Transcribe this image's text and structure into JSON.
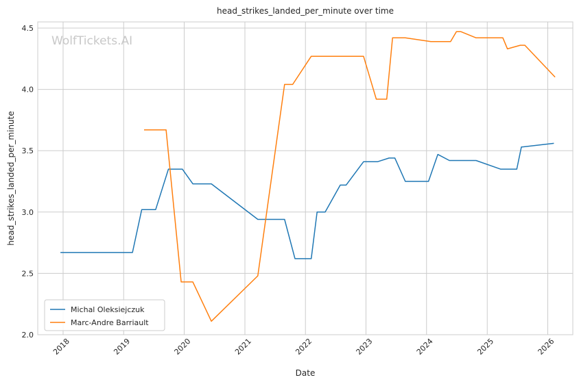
{
  "chart_data": {
    "type": "line",
    "title": "head_strikes_landed_per_minute over time",
    "xlabel": "Date",
    "ylabel": "head_strikes_landed_per_minute",
    "watermark": "WolfTickets.AI",
    "xlim": [
      "2017-08-01",
      "2026-06-01"
    ],
    "ylim": [
      2.0,
      4.55
    ],
    "x_ticks": [
      "2018",
      "2019",
      "2020",
      "2021",
      "2022",
      "2023",
      "2024",
      "2025",
      "2026"
    ],
    "y_ticks": [
      "2.0",
      "2.5",
      "3.0",
      "3.5",
      "4.0",
      "4.5"
    ],
    "grid": true,
    "legend_position": "lower-left",
    "series": [
      {
        "name": "Michal Oleksiejczuk",
        "color": "#1f77b4",
        "x": [
          "2017-12-16",
          "2019-02-23",
          "2019-04-20",
          "2019-07-13",
          "2019-09-28",
          "2019-12-21",
          "2020-02-22",
          "2020-06-13",
          "2021-03-20",
          "2021-08-28",
          "2021-10-30",
          "2022-02-05",
          "2022-03-12",
          "2022-04-30",
          "2022-07-30",
          "2022-09-03",
          "2022-12-17",
          "2023-03-11",
          "2023-05-20",
          "2023-06-24",
          "2023-08-26",
          "2024-01-13",
          "2024-03-09",
          "2024-05-18",
          "2024-07-13",
          "2024-10-26",
          "2025-03-22",
          "2025-06-28",
          "2025-07-26",
          "2026-02-07"
        ],
        "y": [
          2.67,
          2.67,
          3.02,
          3.02,
          3.35,
          3.35,
          3.23,
          3.23,
          2.94,
          2.94,
          2.62,
          2.62,
          3.0,
          3.0,
          3.22,
          3.22,
          3.41,
          3.41,
          3.44,
          3.44,
          3.25,
          3.25,
          3.47,
          3.42,
          3.42,
          3.42,
          3.35,
          3.35,
          3.53,
          3.56
        ]
      },
      {
        "name": "Marc-Andre Barriault",
        "color": "#ff7f0e",
        "x": [
          "2019-05-04",
          "2019-09-14",
          "2019-12-14",
          "2020-02-22",
          "2020-06-13",
          "2021-03-20",
          "2021-08-28",
          "2021-10-16",
          "2022-02-05",
          "2022-03-19",
          "2022-05-21",
          "2022-08-20",
          "2022-12-17",
          "2023-03-04",
          "2023-05-06",
          "2023-06-10",
          "2023-08-26",
          "2024-01-27",
          "2024-05-25",
          "2024-06-29",
          "2024-07-27",
          "2024-10-26",
          "2025-02-15",
          "2025-04-05",
          "2025-05-03",
          "2025-07-19",
          "2025-08-16",
          "2026-02-14"
        ],
        "y": [
          3.67,
          3.67,
          2.43,
          2.43,
          2.11,
          2.48,
          4.04,
          4.04,
          4.27,
          4.27,
          4.27,
          4.27,
          4.27,
          3.92,
          3.92,
          4.42,
          4.42,
          4.39,
          4.39,
          4.47,
          4.47,
          4.42,
          4.42,
          4.42,
          4.33,
          4.36,
          4.36,
          4.1
        ]
      }
    ]
  }
}
